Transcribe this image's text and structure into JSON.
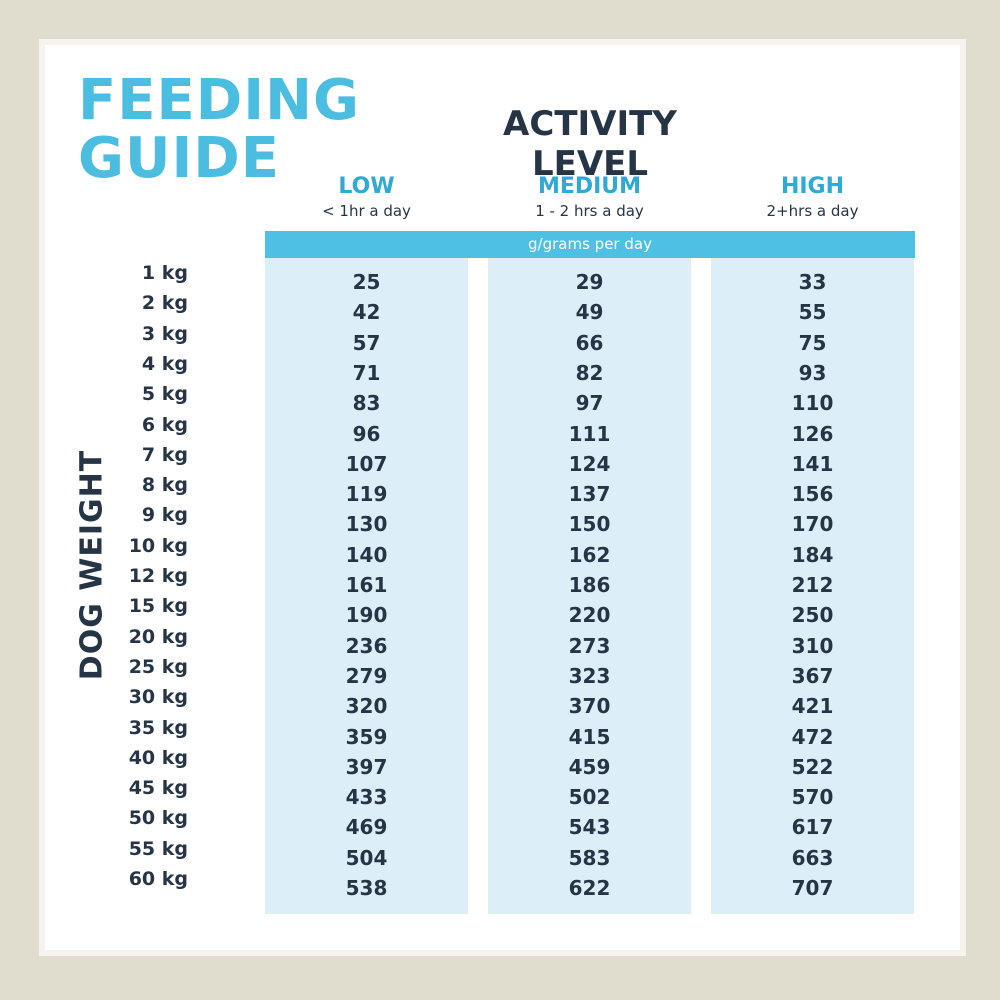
{
  "title_lines": [
    "FEEDING",
    "GUIDE"
  ],
  "header": "ACTIVITY LEVEL",
  "columns": [
    {
      "name": "LOW",
      "sub": "< 1hr a day"
    },
    {
      "name": "MEDIUM",
      "sub": "1 - 2 hrs a day"
    },
    {
      "name": "HIGH",
      "sub": "2+hrs a day"
    }
  ],
  "unit": "g/grams per day",
  "row_axis": "DOG WEIGHT",
  "rows": [
    {
      "weight": "1 kg",
      "values": [
        25,
        29,
        33
      ]
    },
    {
      "weight": "2 kg",
      "values": [
        42,
        49,
        55
      ]
    },
    {
      "weight": "3 kg",
      "values": [
        57,
        66,
        75
      ]
    },
    {
      "weight": "4 kg",
      "values": [
        71,
        82,
        93
      ]
    },
    {
      "weight": "5 kg",
      "values": [
        83,
        97,
        110
      ]
    },
    {
      "weight": "6 kg",
      "values": [
        96,
        111,
        126
      ]
    },
    {
      "weight": "7 kg",
      "values": [
        107,
        124,
        141
      ]
    },
    {
      "weight": "8 kg",
      "values": [
        119,
        137,
        156
      ]
    },
    {
      "weight": "9 kg",
      "values": [
        130,
        150,
        170
      ]
    },
    {
      "weight": "10 kg",
      "values": [
        140,
        162,
        184
      ]
    },
    {
      "weight": "12 kg",
      "values": [
        161,
        186,
        212
      ]
    },
    {
      "weight": "15 kg",
      "values": [
        190,
        220,
        250
      ]
    },
    {
      "weight": "20 kg",
      "values": [
        236,
        273,
        310
      ]
    },
    {
      "weight": "25 kg",
      "values": [
        279,
        323,
        367
      ]
    },
    {
      "weight": "30 kg",
      "values": [
        320,
        370,
        421
      ]
    },
    {
      "weight": "35 kg",
      "values": [
        359,
        415,
        472
      ]
    },
    {
      "weight": "40 kg",
      "values": [
        397,
        459,
        522
      ]
    },
    {
      "weight": "45 kg",
      "values": [
        433,
        502,
        570
      ]
    },
    {
      "weight": "50 kg",
      "values": [
        469,
        543,
        617
      ]
    },
    {
      "weight": "55 kg",
      "values": [
        504,
        583,
        663
      ]
    },
    {
      "weight": "60 kg",
      "values": [
        538,
        622,
        707
      ]
    }
  ]
}
